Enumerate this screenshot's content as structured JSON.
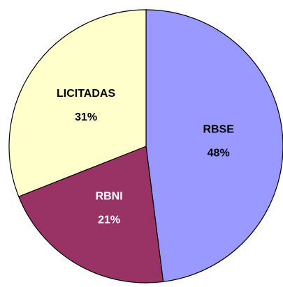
{
  "chart_data": {
    "type": "pie",
    "categories": [
      "RBSE",
      "RBNI",
      "LICITADAS"
    ],
    "values": [
      48,
      21,
      31
    ],
    "value_labels": [
      "48%",
      "21%",
      "31%"
    ],
    "colors": [
      "#9999ff",
      "#993366",
      "#ffffcc"
    ],
    "label_colors": [
      "#000000",
      "#ffffff",
      "#000000"
    ]
  }
}
